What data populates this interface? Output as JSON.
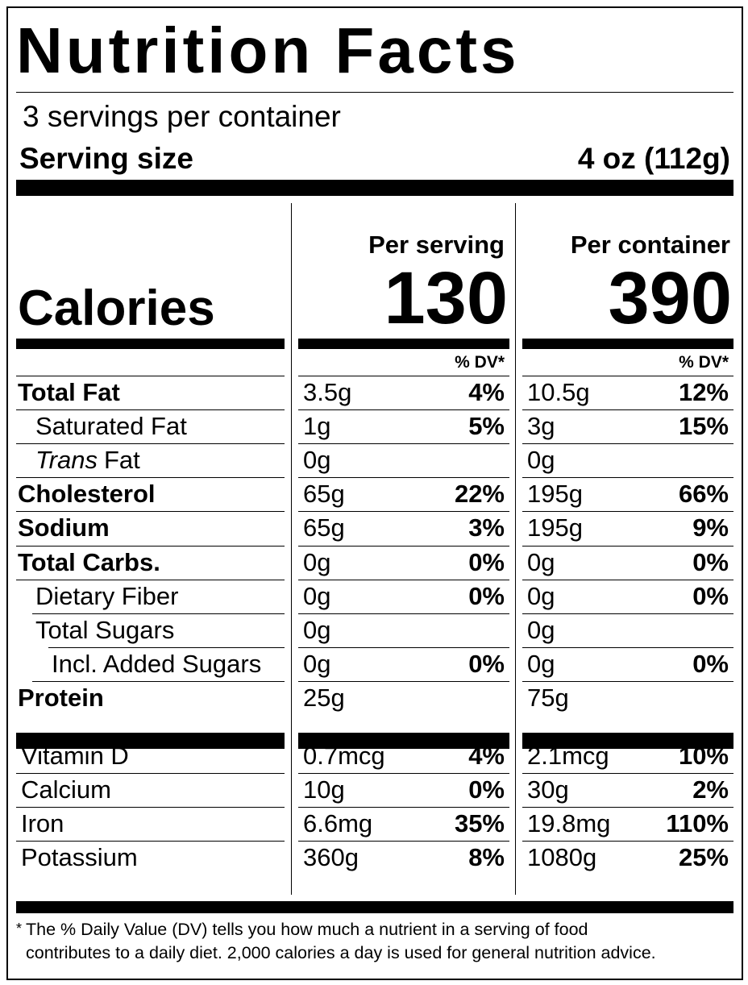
{
  "title": "Nutrition Facts",
  "servings": "3 servings per container",
  "serving_size": {
    "label": "Serving size",
    "value": "4 oz (112g)"
  },
  "calories": {
    "label": "Calories",
    "per_serving": {
      "label": "Per serving",
      "value": "130"
    },
    "per_container": {
      "label": "Per container",
      "value": "390"
    }
  },
  "dv_header": "% DV*",
  "nutrients": [
    {
      "name": "Total Fat",
      "serving": {
        "amount": "3.5g",
        "dv": "4%"
      },
      "container": {
        "amount": "10.5g",
        "dv": "12%"
      }
    },
    {
      "name": "Saturated Fat",
      "serving": {
        "amount": "1g",
        "dv": "5%"
      },
      "container": {
        "amount": "3g",
        "dv": "15%"
      }
    },
    {
      "name_italic": "Trans",
      "name": "Fat",
      "serving": {
        "amount": "0g",
        "dv": null
      },
      "container": {
        "amount": "0g",
        "dv": null
      }
    },
    {
      "name": "Cholesterol",
      "serving": {
        "amount": "65g",
        "dv": "22%"
      },
      "container": {
        "amount": "195g",
        "dv": "66%"
      }
    },
    {
      "name": "Sodium",
      "serving": {
        "amount": "65g",
        "dv": "3%"
      },
      "container": {
        "amount": "195g",
        "dv": "9%"
      }
    },
    {
      "name": "Total Carbs.",
      "serving": {
        "amount": "0g",
        "dv": "0%"
      },
      "container": {
        "amount": "0g",
        "dv": "0%"
      }
    },
    {
      "name": "Dietary Fiber",
      "serving": {
        "amount": "0g",
        "dv": "0%"
      },
      "container": {
        "amount": "0g",
        "dv": "0%"
      }
    },
    {
      "name": "Total Sugars",
      "serving": {
        "amount": "0g",
        "dv": null
      },
      "container": {
        "amount": "0g",
        "dv": null
      }
    },
    {
      "name": "Incl. Added Sugars",
      "serving": {
        "amount": "0g",
        "dv": "0%"
      },
      "container": {
        "amount": "0g",
        "dv": "0%"
      }
    },
    {
      "name": "Protein",
      "serving": {
        "amount": "25g",
        "dv": null
      },
      "container": {
        "amount": "75g",
        "dv": null
      }
    }
  ],
  "vitamins": [
    {
      "name": "Vitamin D",
      "serving": {
        "amount": "0.7mcg",
        "dv": "4%"
      },
      "container": {
        "amount": "2.1mcg",
        "dv": "10%"
      }
    },
    {
      "name": "Calcium",
      "serving": {
        "amount": "10g",
        "dv": "0%"
      },
      "container": {
        "amount": "30g",
        "dv": "2%"
      }
    },
    {
      "name": "Iron",
      "serving": {
        "amount": "6.6mg",
        "dv": "35%"
      },
      "container": {
        "amount": "19.8mg",
        "dv": "110%"
      }
    },
    {
      "name": "Potassium",
      "serving": {
        "amount": "360g",
        "dv": "8%"
      },
      "container": {
        "amount": "1080g",
        "dv": "25%"
      }
    }
  ],
  "footnote": {
    "mark": "*",
    "lines": [
      "The % Daily Value (DV) tells you how much a nutrient in a serving of food",
      "contributes to a daily diet. 2,000 calories a day is used for general nutrition advice."
    ]
  }
}
